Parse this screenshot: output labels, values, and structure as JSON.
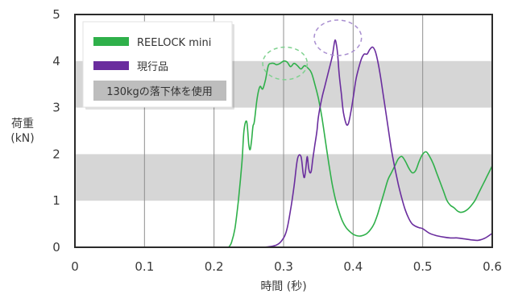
{
  "chart_data": {
    "type": "line",
    "xlabel": "時間 (秒)",
    "ylabel_line1": "荷重",
    "ylabel_line2": "(kN)",
    "xlim": [
      0,
      0.6
    ],
    "ylim": [
      0,
      5
    ],
    "x_ticks": [
      "0",
      "0.1",
      "0.2",
      "0.3",
      "0.4",
      "0.5",
      "0.6"
    ],
    "y_ticks": [
      "0",
      "1",
      "2",
      "3",
      "4",
      "5"
    ],
    "shaded_bands": [
      [
        1,
        2
      ],
      [
        3,
        4
      ]
    ],
    "vertical_grid": [
      0.1,
      0.2,
      0.3,
      0.4,
      0.5
    ],
    "note": "130kgの落下体を使用",
    "series": [
      {
        "name": "REELOCK mini",
        "color": "#2fb04a",
        "x": [
          0.221,
          0.225,
          0.23,
          0.235,
          0.24,
          0.243,
          0.247,
          0.25,
          0.252,
          0.254,
          0.256,
          0.258,
          0.262,
          0.266,
          0.27,
          0.274,
          0.278,
          0.282,
          0.286,
          0.29,
          0.295,
          0.3,
          0.305,
          0.31,
          0.315,
          0.32,
          0.325,
          0.33,
          0.335,
          0.34,
          0.345,
          0.35,
          0.355,
          0.36,
          0.365,
          0.37,
          0.375,
          0.38,
          0.385,
          0.39,
          0.395,
          0.4,
          0.405,
          0.41,
          0.415,
          0.42,
          0.425,
          0.43,
          0.435,
          0.44,
          0.445,
          0.45,
          0.455,
          0.46,
          0.465,
          0.47,
          0.475,
          0.48,
          0.485,
          0.49,
          0.495,
          0.5,
          0.505,
          0.51,
          0.515,
          0.52,
          0.525,
          0.53,
          0.535,
          0.54,
          0.545,
          0.55,
          0.555,
          0.56,
          0.565,
          0.57,
          0.575,
          0.58,
          0.585,
          0.59,
          0.595,
          0.6
        ],
        "y": [
          0,
          0.1,
          0.4,
          1.0,
          1.8,
          2.5,
          2.7,
          2.2,
          2.1,
          2.3,
          2.6,
          2.7,
          3.2,
          3.45,
          3.4,
          3.6,
          3.9,
          3.95,
          3.95,
          3.92,
          3.95,
          4.0,
          3.98,
          3.88,
          3.95,
          3.9,
          3.83,
          3.9,
          3.85,
          3.75,
          3.5,
          3.2,
          2.8,
          2.3,
          1.8,
          1.35,
          1.0,
          0.75,
          0.55,
          0.42,
          0.34,
          0.28,
          0.25,
          0.24,
          0.26,
          0.3,
          0.38,
          0.5,
          0.7,
          0.95,
          1.2,
          1.45,
          1.6,
          1.75,
          1.9,
          1.95,
          1.85,
          1.7,
          1.6,
          1.65,
          1.85,
          2.0,
          2.05,
          1.95,
          1.8,
          1.6,
          1.4,
          1.2,
          1.0,
          0.9,
          0.85,
          0.78,
          0.75,
          0.77,
          0.82,
          0.9,
          1.0,
          1.15,
          1.3,
          1.45,
          1.6,
          1.75
        ]
      },
      {
        "name": "現行品",
        "color": "#6a2d9e",
        "x": [
          0.221,
          0.24,
          0.27,
          0.29,
          0.3,
          0.305,
          0.31,
          0.315,
          0.32,
          0.325,
          0.328,
          0.33,
          0.332,
          0.334,
          0.336,
          0.338,
          0.34,
          0.342,
          0.345,
          0.348,
          0.35,
          0.355,
          0.36,
          0.365,
          0.37,
          0.372,
          0.374,
          0.376,
          0.378,
          0.38,
          0.383,
          0.386,
          0.39,
          0.393,
          0.396,
          0.4,
          0.404,
          0.408,
          0.412,
          0.416,
          0.42,
          0.424,
          0.428,
          0.432,
          0.436,
          0.44,
          0.445,
          0.45,
          0.455,
          0.46,
          0.465,
          0.47,
          0.475,
          0.48,
          0.485,
          0.49,
          0.495,
          0.5,
          0.51,
          0.52,
          0.53,
          0.54,
          0.55,
          0.56,
          0.57,
          0.58,
          0.59,
          0.6
        ],
        "y": [
          0,
          0,
          0,
          0.05,
          0.2,
          0.4,
          0.8,
          1.3,
          1.9,
          1.95,
          1.6,
          1.5,
          1.7,
          1.95,
          1.7,
          1.6,
          1.65,
          1.9,
          2.2,
          2.5,
          2.8,
          3.2,
          3.5,
          3.8,
          4.1,
          4.3,
          4.45,
          4.35,
          4.1,
          3.7,
          3.3,
          2.9,
          2.65,
          2.65,
          2.85,
          3.2,
          3.6,
          3.85,
          4.05,
          4.15,
          4.15,
          4.25,
          4.3,
          4.2,
          3.95,
          3.6,
          3.1,
          2.6,
          2.1,
          1.7,
          1.35,
          1.05,
          0.8,
          0.62,
          0.5,
          0.45,
          0.42,
          0.4,
          0.3,
          0.25,
          0.22,
          0.2,
          0.2,
          0.18,
          0.16,
          0.15,
          0.2,
          0.3
        ]
      }
    ],
    "annotations": [
      {
        "type": "dashed-ellipse",
        "color": "#7fd18f",
        "cx": 0.302,
        "cy": 3.95,
        "rx": 0.032,
        "ry": 0.35
      },
      {
        "type": "dashed-ellipse",
        "color": "#a98fd0",
        "cx": 0.378,
        "cy": 4.5,
        "rx": 0.034,
        "ry": 0.38
      }
    ]
  }
}
